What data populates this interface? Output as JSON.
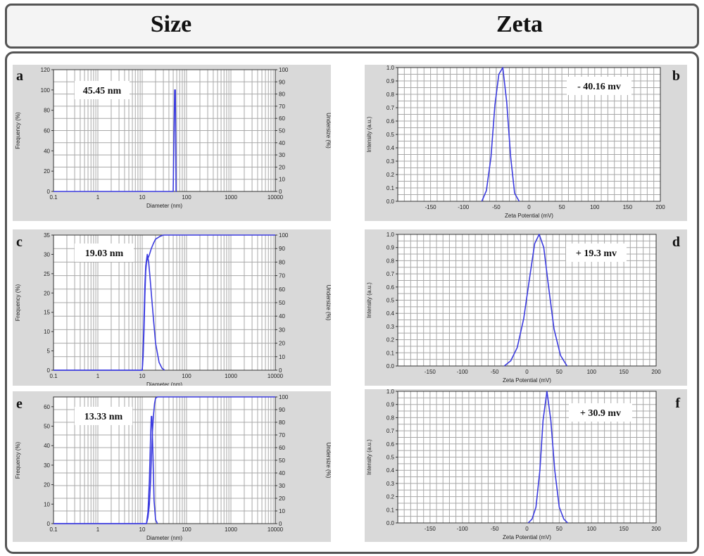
{
  "header": {
    "size_title": "Size",
    "zeta_title": "Zeta"
  },
  "chart_data": [
    {
      "id": "a",
      "panel_label": "a",
      "type": "line",
      "kind": "size",
      "annotation": "45.45  nm",
      "xlabel": "Diameter (nm)",
      "ylabel": "Frequency (%)",
      "ylabel_right": "Undersize (%)",
      "xlim": [
        0.1,
        10000
      ],
      "xscale": "log",
      "ylim": [
        0,
        120
      ],
      "ylim_right": [
        0,
        100
      ],
      "xticks": [
        "0.1",
        "1",
        "10",
        "100",
        "1000",
        "10000"
      ],
      "yticks": [
        0,
        20,
        40,
        60,
        80,
        100,
        120
      ],
      "yticks_right": [
        0,
        10,
        20,
        30,
        40,
        50,
        60,
        70,
        80,
        90,
        100
      ],
      "series": [
        {
          "axis": "left",
          "x": [
            0.1,
            0.3,
            50,
            54,
            56,
            58,
            60
          ],
          "y": [
            0,
            0,
            0,
            100,
            100,
            0,
            0
          ]
        }
      ]
    },
    {
      "id": "b",
      "panel_label": "b",
      "type": "line",
      "kind": "zeta",
      "annotation": "- 40.16  mv",
      "xlabel": "Zeta Potential (mV)",
      "ylabel": "Intensity (a.u.)",
      "xlim": [
        -200,
        200
      ],
      "ylim": [
        0,
        1.0
      ],
      "xticks": [
        -150,
        -100,
        -50,
        0,
        50,
        100,
        150,
        200
      ],
      "yticks": [
        "0.0",
        "0.1",
        "0.2",
        "0.3",
        "0.4",
        "0.5",
        "0.6",
        "0.7",
        "0.8",
        "0.9",
        "1.0"
      ],
      "series": [
        {
          "axis": "left",
          "x": [
            -72,
            -65,
            -58,
            -52,
            -46,
            -40,
            -34,
            -28,
            -22,
            -15
          ],
          "y": [
            0,
            0.08,
            0.33,
            0.72,
            0.95,
            1.0,
            0.74,
            0.33,
            0.06,
            0
          ]
        }
      ]
    },
    {
      "id": "c",
      "panel_label": "c",
      "type": "line",
      "kind": "size",
      "annotation": "19.03  nm",
      "xlabel": "Diameter (nm)",
      "ylabel": "Frequency (%)",
      "ylabel_right": "Undersize (%)",
      "xlim": [
        0.1,
        10000
      ],
      "xscale": "log",
      "ylim": [
        0,
        35
      ],
      "ylim_right": [
        0,
        100
      ],
      "xticks": [
        "0.1",
        "1",
        "10",
        "100",
        "1000",
        "10000"
      ],
      "yticks": [
        0,
        5,
        10,
        15,
        20,
        25,
        30,
        35
      ],
      "yticks_right": [
        0,
        10,
        20,
        30,
        40,
        50,
        60,
        70,
        80,
        90,
        100
      ],
      "series": [
        {
          "axis": "left",
          "x": [
            0.1,
            0.3,
            10,
            10.5,
            11,
            11.5,
            12,
            13,
            14,
            15,
            16,
            18,
            20,
            24,
            28,
            32
          ],
          "y": [
            0,
            0,
            0,
            5,
            14,
            22,
            27,
            30,
            28,
            24,
            20,
            13,
            7,
            2,
            0.5,
            0
          ]
        },
        {
          "axis": "right",
          "x": [
            0.1,
            0.3,
            10,
            10.5,
            11,
            11.5,
            12,
            12.5,
            13,
            14,
            15,
            16,
            18,
            20,
            25,
            30,
            40,
            10000
          ],
          "y": [
            0,
            0,
            0,
            10,
            30,
            55,
            73,
            80,
            82,
            84,
            87,
            90,
            94,
            97,
            99,
            100,
            100,
            100
          ]
        }
      ]
    },
    {
      "id": "d",
      "panel_label": "d",
      "type": "line",
      "kind": "zeta",
      "annotation": "+ 19.3  mv",
      "xlabel": "Zeta Potential (mV)",
      "ylabel": "Intensity (a.u.)",
      "xlim": [
        -200,
        200
      ],
      "ylim": [
        0,
        1.0
      ],
      "xticks": [
        -150,
        -100,
        -50,
        0,
        50,
        100,
        150,
        200
      ],
      "yticks": [
        "0.0",
        "0.1",
        "0.2",
        "0.3",
        "0.4",
        "0.5",
        "0.6",
        "0.7",
        "0.8",
        "0.9",
        "1.0"
      ],
      "series": [
        {
          "axis": "left",
          "x": [
            -35,
            -25,
            -15,
            -5,
            5,
            12,
            19,
            26,
            33,
            42,
            52,
            62
          ],
          "y": [
            0,
            0.04,
            0.14,
            0.36,
            0.7,
            0.93,
            1.0,
            0.9,
            0.62,
            0.28,
            0.08,
            0
          ]
        }
      ]
    },
    {
      "id": "e",
      "panel_label": "e",
      "type": "line",
      "kind": "size",
      "annotation": "13.33  nm",
      "xlabel": "Diameter (nm)",
      "ylabel": "Frequency (%)",
      "ylabel_right": "Undersize (%)",
      "xlim": [
        0.1,
        10000
      ],
      "xscale": "log",
      "ylim": [
        0,
        65
      ],
      "ylim_right": [
        0,
        100
      ],
      "xticks": [
        "0.1",
        "1",
        "10",
        "100",
        "1000",
        "10000"
      ],
      "yticks": [
        0,
        10,
        20,
        30,
        40,
        50,
        60
      ],
      "yticks_right": [
        0,
        10,
        20,
        30,
        40,
        50,
        60,
        70,
        80,
        90,
        100
      ],
      "series": [
        {
          "axis": "left",
          "x": [
            0.1,
            0.3,
            12.5,
            13.5,
            14.5,
            15.5,
            16,
            16.5,
            17.5,
            18.5,
            20,
            22
          ],
          "y": [
            0,
            0,
            0,
            6,
            22,
            46,
            55,
            55,
            35,
            12,
            2,
            0
          ]
        },
        {
          "axis": "right",
          "x": [
            0.1,
            0.3,
            12.5,
            13.5,
            14.5,
            15.5,
            16,
            17,
            18,
            19,
            20,
            22,
            10000
          ],
          "y": [
            0,
            0,
            0,
            5,
            15,
            35,
            50,
            72,
            86,
            95,
            99,
            100,
            100
          ]
        }
      ]
    },
    {
      "id": "f",
      "panel_label": "f",
      "type": "line",
      "kind": "zeta",
      "annotation": "+ 30.9  mv",
      "xlabel": "Zeta Potential (mV)",
      "ylabel": "Intensity (a.u.)",
      "xlim": [
        -200,
        200
      ],
      "ylim": [
        0,
        1.0
      ],
      "xticks": [
        -150,
        -100,
        -50,
        0,
        50,
        100,
        150,
        200
      ],
      "yticks": [
        "0.0",
        "0.1",
        "0.2",
        "0.3",
        "0.4",
        "0.5",
        "0.6",
        "0.7",
        "0.8",
        "0.9",
        "1.0"
      ],
      "series": [
        {
          "axis": "left",
          "x": [
            2,
            8,
            14,
            20,
            25,
            31,
            37,
            43,
            50,
            57,
            63
          ],
          "y": [
            0,
            0.03,
            0.12,
            0.4,
            0.78,
            1.0,
            0.78,
            0.4,
            0.12,
            0.03,
            0
          ]
        }
      ]
    }
  ]
}
